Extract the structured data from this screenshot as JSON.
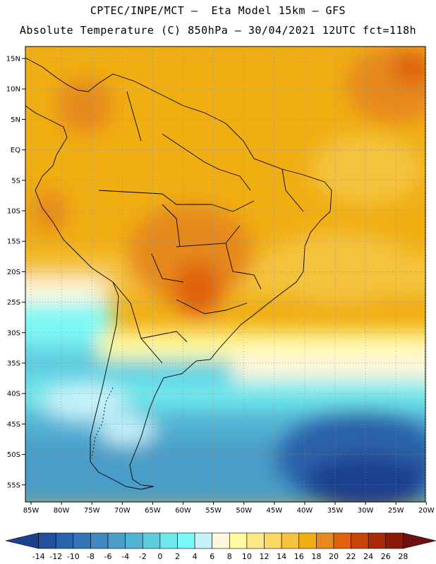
{
  "header": {
    "line1": "CPTEC/INPE/MCT –  Eta Model 15km – GFS",
    "line2": "Absolute Temperature (C) 850hPa – 30/04/2021 12UTC fct=118h"
  },
  "map": {
    "lat_labels": [
      "15N",
      "10N",
      "5N",
      "EQ",
      "5S",
      "10S",
      "15S",
      "20S",
      "25S",
      "30S",
      "35S",
      "40S",
      "45S",
      "50S",
      "55S"
    ],
    "lon_labels": [
      "85W",
      "80W",
      "75W",
      "70W",
      "65W",
      "60W",
      "55W",
      "50W",
      "45W",
      "40W",
      "35W",
      "30W",
      "25W",
      "20W"
    ]
  },
  "colorbar": {
    "ticks": [
      "-14",
      "-12",
      "-10",
      "-8",
      "-6",
      "-4",
      "-2",
      "0",
      "2",
      "4",
      "6",
      "8",
      "10",
      "12",
      "14",
      "16",
      "18",
      "20",
      "22",
      "24",
      "26",
      "28"
    ],
    "colors": [
      "#1c3f8f",
      "#22509c",
      "#2a62ab",
      "#3475b6",
      "#3f89c0",
      "#4a9ec9",
      "#52b4d4",
      "#5ecde0",
      "#6ee8ec",
      "#7cf8f6",
      "#c7f3fb",
      "#fff6dc",
      "#fff9a0",
      "#ffe986",
      "#fdd764",
      "#f4c33d",
      "#f0ae12",
      "#e6891e",
      "#e0620c",
      "#c74408",
      "#a92a0a",
      "#8a1a0a",
      "#6e0f12"
    ]
  }
}
